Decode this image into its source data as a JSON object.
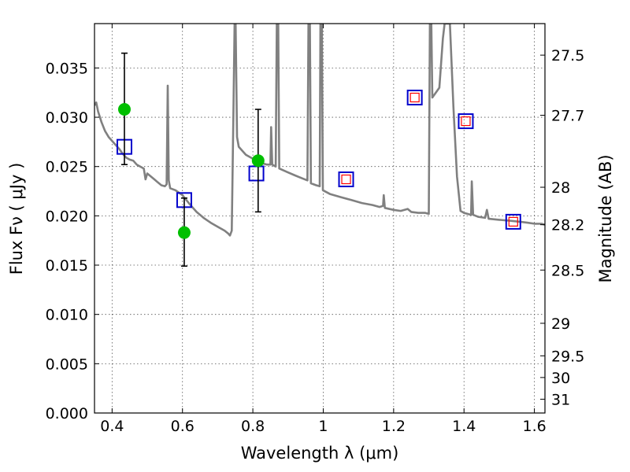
{
  "chart_data": {
    "type": "line",
    "xlabel": "Wavelength  λ (μm)",
    "ylabel": "Flux  Fν  ( μJy )",
    "y2label": "Magnitude (AB)",
    "xlim": [
      0.35,
      1.63
    ],
    "ylim": [
      0.0,
      0.0395
    ],
    "x_ticks": [
      0.4,
      0.6,
      0.8,
      1.0,
      1.2,
      1.4,
      1.6
    ],
    "x_tick_labels": [
      "0.4",
      "0.6",
      "0.8",
      "1",
      "1.2",
      "1.4",
      "1.6"
    ],
    "y_ticks": [
      0.0,
      0.005,
      0.01,
      0.015,
      0.02,
      0.025,
      0.03,
      0.035
    ],
    "y_tick_labels": [
      "0.000",
      "0.005",
      "0.010",
      "0.015",
      "0.020",
      "0.025",
      "0.030",
      "0.035"
    ],
    "y2_ticks": [
      {
        "label": "27.5",
        "flux": 0.0363
      },
      {
        "label": "27.7",
        "flux": 0.0302
      },
      {
        "label": "28",
        "flux": 0.0229
      },
      {
        "label": "28.2",
        "flux": 0.0191
      },
      {
        "label": "28.5",
        "flux": 0.0145
      },
      {
        "label": "29",
        "flux": 0.0091
      },
      {
        "label": "29.5",
        "flux": 0.0058
      },
      {
        "label": "30",
        "flux": 0.0036
      },
      {
        "label": "31",
        "flux": 0.0014
      }
    ],
    "grid": true,
    "colors": {
      "model": "#808080",
      "observed": "#00bf00",
      "model_box": "#0000cc",
      "model_box_inner": "#ff0000",
      "errorbar": "#000000"
    },
    "series": [
      {
        "kind": "model-spectrum",
        "points": [
          [
            0.35,
            0.0312
          ],
          [
            0.355,
            0.0315
          ],
          [
            0.36,
            0.0306
          ],
          [
            0.37,
            0.0295
          ],
          [
            0.38,
            0.0286
          ],
          [
            0.39,
            0.028
          ],
          [
            0.4,
            0.0276
          ],
          [
            0.41,
            0.0272
          ],
          [
            0.42,
            0.0268
          ],
          [
            0.43,
            0.0263
          ],
          [
            0.44,
            0.0259
          ],
          [
            0.45,
            0.0257
          ],
          [
            0.46,
            0.0256
          ],
          [
            0.47,
            0.0252
          ],
          [
            0.48,
            0.025
          ],
          [
            0.49,
            0.0248
          ],
          [
            0.495,
            0.0237
          ],
          [
            0.5,
            0.0243
          ],
          [
            0.51,
            0.024
          ],
          [
            0.52,
            0.0237
          ],
          [
            0.53,
            0.0234
          ],
          [
            0.54,
            0.0231
          ],
          [
            0.55,
            0.023
          ],
          [
            0.555,
            0.0232
          ],
          [
            0.558,
            0.0332
          ],
          [
            0.561,
            0.0236
          ],
          [
            0.565,
            0.0228
          ],
          [
            0.58,
            0.0226
          ],
          [
            0.6,
            0.0221
          ],
          [
            0.62,
            0.0212
          ],
          [
            0.64,
            0.0204
          ],
          [
            0.66,
            0.0198
          ],
          [
            0.68,
            0.0193
          ],
          [
            0.7,
            0.0189
          ],
          [
            0.72,
            0.0185
          ],
          [
            0.73,
            0.0182
          ],
          [
            0.735,
            0.018
          ],
          [
            0.74,
            0.0185
          ],
          [
            0.745,
            0.031
          ],
          [
            0.748,
            0.0395
          ],
          [
            0.751,
            0.0395
          ],
          [
            0.755,
            0.028
          ],
          [
            0.76,
            0.027
          ],
          [
            0.78,
            0.0262
          ],
          [
            0.8,
            0.0258
          ],
          [
            0.82,
            0.0254
          ],
          [
            0.84,
            0.0252
          ],
          [
            0.85,
            0.0252
          ],
          [
            0.852,
            0.029
          ],
          [
            0.855,
            0.0252
          ],
          [
            0.865,
            0.025
          ],
          [
            0.868,
            0.0395
          ],
          [
            0.872,
            0.0395
          ],
          [
            0.875,
            0.0248
          ],
          [
            0.9,
            0.0244
          ],
          [
            0.92,
            0.0241
          ],
          [
            0.94,
            0.0238
          ],
          [
            0.955,
            0.0236
          ],
          [
            0.958,
            0.0395
          ],
          [
            0.962,
            0.0395
          ],
          [
            0.965,
            0.0233
          ],
          [
            0.98,
            0.0231
          ],
          [
            0.99,
            0.023
          ],
          [
            0.992,
            0.0395
          ],
          [
            0.996,
            0.0395
          ],
          [
            0.999,
            0.0226
          ],
          [
            1.02,
            0.0222
          ],
          [
            1.05,
            0.0219
          ],
          [
            1.08,
            0.0216
          ],
          [
            1.11,
            0.0213
          ],
          [
            1.14,
            0.0211
          ],
          [
            1.16,
            0.0209
          ],
          [
            1.17,
            0.021
          ],
          [
            1.172,
            0.0221
          ],
          [
            1.175,
            0.0208
          ],
          [
            1.2,
            0.0206
          ],
          [
            1.22,
            0.0205
          ],
          [
            1.24,
            0.0207
          ],
          [
            1.25,
            0.0204
          ],
          [
            1.27,
            0.0203
          ],
          [
            1.29,
            0.0203
          ],
          [
            1.3,
            0.0202
          ],
          [
            1.303,
            0.0395
          ],
          [
            1.307,
            0.0395
          ],
          [
            1.31,
            0.032
          ],
          [
            1.33,
            0.033
          ],
          [
            1.34,
            0.038
          ],
          [
            1.345,
            0.0395
          ],
          [
            1.36,
            0.0395
          ],
          [
            1.37,
            0.031
          ],
          [
            1.38,
            0.024
          ],
          [
            1.39,
            0.0205
          ],
          [
            1.4,
            0.0203
          ],
          [
            1.42,
            0.0201
          ],
          [
            1.422,
            0.0235
          ],
          [
            1.426,
            0.0201
          ],
          [
            1.44,
            0.0199
          ],
          [
            1.46,
            0.0198
          ],
          [
            1.465,
            0.0206
          ],
          [
            1.47,
            0.0197
          ],
          [
            1.5,
            0.0196
          ],
          [
            1.53,
            0.0195
          ],
          [
            1.56,
            0.0194
          ],
          [
            1.58,
            0.0193
          ],
          [
            1.6,
            0.0192
          ],
          [
            1.62,
            0.0192
          ],
          [
            1.63,
            0.0191
          ]
        ]
      },
      {
        "kind": "observed",
        "points": [
          {
            "x": 0.435,
            "y": 0.0308,
            "yerr_low": 0.0252,
            "yerr_high": 0.0365
          },
          {
            "x": 0.605,
            "y": 0.0183,
            "yerr_low": 0.0149,
            "yerr_high": 0.0218
          },
          {
            "x": 0.815,
            "y": 0.0256,
            "yerr_low": 0.0204,
            "yerr_high": 0.0308
          }
        ]
      },
      {
        "kind": "model-synthetic-photometry",
        "points": [
          {
            "x": 0.435,
            "y": 0.027
          },
          {
            "x": 0.605,
            "y": 0.0216
          },
          {
            "x": 0.81,
            "y": 0.0243
          },
          {
            "x": 1.065,
            "y": 0.0237
          },
          {
            "x": 1.26,
            "y": 0.032
          },
          {
            "x": 1.405,
            "y": 0.0296
          },
          {
            "x": 1.54,
            "y": 0.0194
          }
        ]
      }
    ]
  }
}
